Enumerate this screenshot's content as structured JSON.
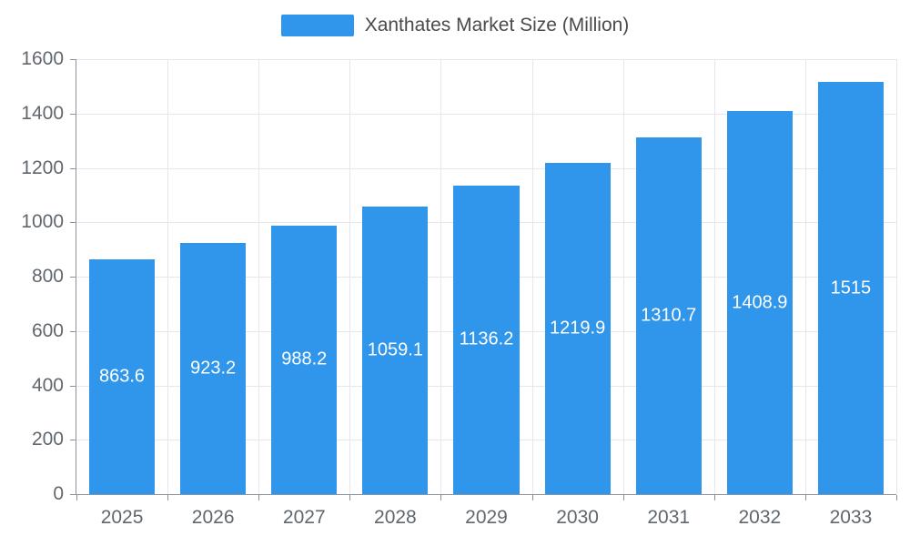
{
  "legend": {
    "label": "Xanthates Market Size (Million)"
  },
  "colors": {
    "bar": "#2f96ec",
    "grid": "#e4e7ed",
    "axis": "#8d939c",
    "tick_label": "#61676e",
    "data_label": "#ffffff",
    "background": "#ffffff"
  },
  "chart_data": {
    "type": "bar",
    "title": "Xanthates Market Size (Million)",
    "categories": [
      "2025",
      "2026",
      "2027",
      "2028",
      "2029",
      "2030",
      "2031",
      "2032",
      "2033"
    ],
    "values": [
      863.6,
      923.2,
      988.2,
      1059.1,
      1136.2,
      1219.9,
      1310.7,
      1408.9,
      1515
    ],
    "series": [
      {
        "name": "Xanthates Market Size (Million)",
        "values": [
          863.6,
          923.2,
          988.2,
          1059.1,
          1136.2,
          1219.9,
          1310.7,
          1408.9,
          1515
        ]
      }
    ],
    "xlabel": "",
    "ylabel": "",
    "ylim": [
      0,
      1600
    ],
    "ytick_step": 200,
    "grid": true,
    "legend_position": "top",
    "data_labels": "inside-middle"
  }
}
